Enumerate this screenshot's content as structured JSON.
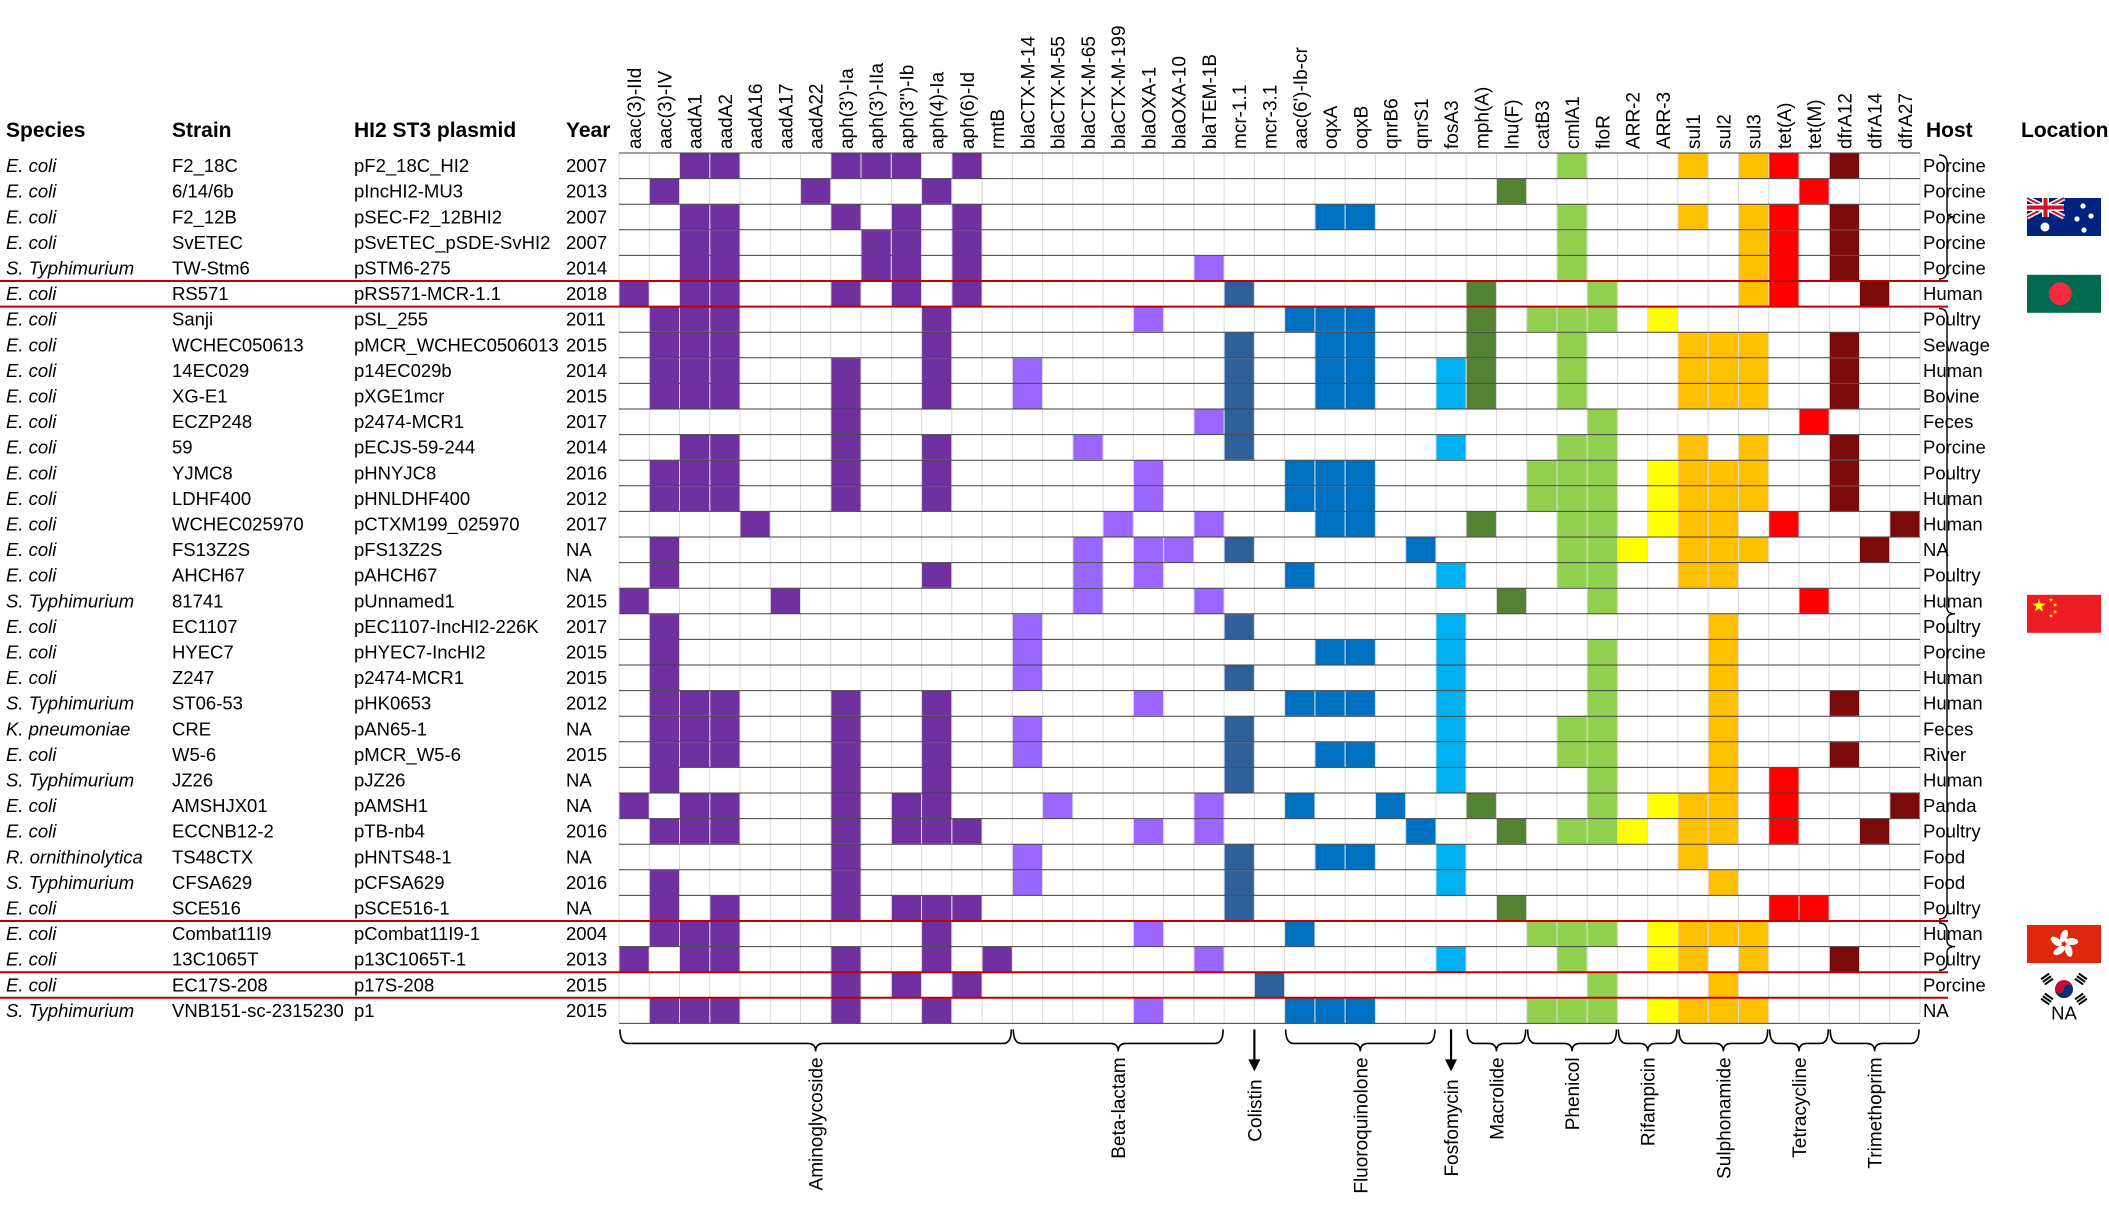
{
  "headers": {
    "species": "Species",
    "strain": "Strain",
    "plasmid": "HI2 ST3 plasmid",
    "year": "Year",
    "host": "Host",
    "location": "Location"
  },
  "colors": {
    "aminoglycoside": "#7030A0",
    "beta_lactam": "#9966FF",
    "colistin": "#2E5F9A",
    "fluoroquinolone": "#0070C0",
    "fosfomycin": "#00B0F0",
    "macrolide": "#548235",
    "phenicol": "#92D050",
    "rifampicin": "#FFFF00",
    "sulphonamide": "#FFC000",
    "tetracycline": "#FF0000",
    "trimethoprim": "#7B0A0A",
    "group_divider": "#C00000",
    "grid": "#D9D9D9"
  },
  "location_labels": {
    "na": "NA"
  },
  "locations": [
    {
      "name": "australia-flag-icon",
      "rows": [
        0,
        4
      ]
    },
    {
      "name": "bangladesh-flag-icon",
      "rows": [
        5,
        5
      ]
    },
    {
      "name": "china-flag-icon",
      "rows": [
        6,
        29
      ]
    },
    {
      "name": "hong-kong-flag-icon",
      "rows": [
        30,
        31
      ]
    },
    {
      "name": "south-korea-flag-icon",
      "rows": [
        32,
        32
      ]
    },
    {
      "name": "na-location",
      "rows": [
        33,
        33
      ]
    }
  ],
  "chart_data": {
    "type": "heatmap",
    "title": "",
    "genes": [
      "aac(3)-IId",
      "aac(3)-IV",
      "aadA1",
      "aadA2",
      "aadA16",
      "aadA17",
      "aadA22",
      "aph(3')-Ia",
      "aph(3')-IIa",
      "aph(3'')-Ib",
      "aph(4)-Ia",
      "aph(6)-Id",
      "rmtB",
      "blaCTX-M-14",
      "blaCTX-M-55",
      "blaCTX-M-65",
      "blaCTX-M-199",
      "blaOXA-1",
      "blaOXA-10",
      "blaTEM-1B",
      "mcr-1.1",
      "mcr-3.1",
      "aac(6')-Ib-cr",
      "oqxA",
      "oqxB",
      "qnrB6",
      "qnrS1",
      "fosA3",
      "mph(A)",
      "lnu(F)",
      "catB3",
      "cmlA1",
      "floR",
      "ARR-2",
      "ARR-3",
      "sul1",
      "sul2",
      "sul3",
      "tet(A)",
      "tet(M)",
      "dfrA12",
      "dfrA14",
      "dfrA27"
    ],
    "classes": [
      {
        "name": "Aminoglycoside",
        "key": "aminoglycoside",
        "start": 0,
        "end": 12
      },
      {
        "name": "Beta-lactam",
        "key": "beta_lactam",
        "start": 13,
        "end": 19
      },
      {
        "name": "Colistin",
        "key": "colistin",
        "start": 20,
        "end": 21
      },
      {
        "name": "Fluoroquinolone",
        "key": "fluoroquinolone",
        "start": 22,
        "end": 26
      },
      {
        "name": "Fosfomycin",
        "key": "fosfomycin",
        "start": 27,
        "end": 27
      },
      {
        "name": "Macrolide",
        "key": "macrolide",
        "start": 28,
        "end": 29
      },
      {
        "name": "Phenicol",
        "key": "phenicol",
        "start": 30,
        "end": 32
      },
      {
        "name": "Rifampicin",
        "key": "rifampicin",
        "start": 33,
        "end": 34
      },
      {
        "name": "Sulphonamide",
        "key": "sulphonamide",
        "start": 35,
        "end": 37
      },
      {
        "name": "Tetracycline",
        "key": "tetracycline",
        "start": 38,
        "end": 39
      },
      {
        "name": "Trimethoprim",
        "key": "trimethoprim",
        "start": 40,
        "end": 42
      }
    ],
    "group_dividers_after_rows": [
      4,
      5,
      29,
      31,
      32
    ],
    "rows": [
      {
        "species": "E. coli",
        "strain": "F2_18C",
        "plasmid": "pF2_18C_HI2",
        "year": "2007",
        "host": "Porcine",
        "genes": [
          2,
          3,
          7,
          8,
          9,
          11,
          31,
          35,
          37,
          38,
          40
        ]
      },
      {
        "species": "E. coli",
        "strain": "6/14/6b",
        "plasmid": "pIncHI2-MU3",
        "year": "2013",
        "host": "Porcine",
        "genes": [
          1,
          6,
          10,
          29,
          39
        ]
      },
      {
        "species": "E. coli",
        "strain": "F2_12B",
        "plasmid": "pSEC-F2_12BHI2",
        "year": "2007",
        "host": "Porcine",
        "genes": [
          2,
          3,
          7,
          9,
          11,
          23,
          24,
          31,
          35,
          37,
          38,
          40
        ]
      },
      {
        "species": "E. coli",
        "strain": "SvETEC",
        "plasmid": "pSvETEC_pSDE-SvHI2",
        "year": "2007",
        "host": "Porcine",
        "genes": [
          2,
          3,
          8,
          9,
          11,
          31,
          37,
          38,
          40
        ]
      },
      {
        "species": "S. Typhimurium",
        "strain": "TW-Stm6",
        "plasmid": "pSTM6-275",
        "year": "2014",
        "host": "Porcine",
        "genes": [
          2,
          3,
          8,
          9,
          11,
          19,
          31,
          37,
          38,
          40
        ]
      },
      {
        "species": "E. coli",
        "strain": "RS571",
        "plasmid": "pRS571-MCR-1.1",
        "year": "2018",
        "host": "Human",
        "genes": [
          0,
          2,
          3,
          7,
          9,
          11,
          20,
          28,
          32,
          37,
          38,
          41
        ]
      },
      {
        "species": "E. coli",
        "strain": "Sanji",
        "plasmid": "pSL_255",
        "year": "2011",
        "host": "Poultry",
        "genes": [
          1,
          2,
          3,
          10,
          17,
          22,
          23,
          24,
          28,
          30,
          31,
          32,
          34
        ]
      },
      {
        "species": "E. coli",
        "strain": "WCHEC050613",
        "plasmid": "pMCR_WCHEC0506013",
        "year": "2015",
        "host": "Sewage",
        "genes": [
          1,
          2,
          3,
          10,
          20,
          23,
          24,
          28,
          31,
          35,
          36,
          37,
          40
        ]
      },
      {
        "species": "E. coli",
        "strain": "14EC029",
        "plasmid": "p14EC029b",
        "year": "2014",
        "host": "Human",
        "genes": [
          1,
          2,
          3,
          7,
          10,
          13,
          20,
          23,
          24,
          27,
          28,
          31,
          35,
          36,
          37,
          40
        ]
      },
      {
        "species": "E. coli",
        "strain": "XG-E1",
        "plasmid": "pXGE1mcr",
        "year": "2015",
        "host": "Bovine",
        "genes": [
          1,
          2,
          3,
          7,
          10,
          13,
          20,
          23,
          24,
          27,
          28,
          31,
          35,
          36,
          37,
          40
        ]
      },
      {
        "species": "E. coli",
        "strain": "ECZP248",
        "plasmid": "p2474-MCR1",
        "year": "2017",
        "host": "Feces",
        "genes": [
          7,
          19,
          20,
          32,
          39
        ]
      },
      {
        "species": "E. coli",
        "strain": "59",
        "plasmid": "pECJS-59-244",
        "year": "2014",
        "host": "Porcine",
        "genes": [
          2,
          3,
          7,
          10,
          15,
          20,
          27,
          31,
          32,
          35,
          37,
          40
        ]
      },
      {
        "species": "E. coli",
        "strain": "YJMC8",
        "plasmid": "pHNYJC8",
        "year": "2016",
        "host": "Poultry",
        "genes": [
          1,
          2,
          3,
          7,
          10,
          17,
          22,
          23,
          24,
          30,
          31,
          32,
          34,
          35,
          36,
          37,
          40
        ]
      },
      {
        "species": "E. coli",
        "strain": "LDHF400",
        "plasmid": "pHNLDHF400",
        "year": "2012",
        "host": "Human",
        "genes": [
          1,
          2,
          3,
          7,
          10,
          17,
          22,
          23,
          24,
          30,
          31,
          32,
          34,
          35,
          36,
          37,
          40
        ]
      },
      {
        "species": "E. coli",
        "strain": "WCHEC025970",
        "plasmid": "pCTXM199_025970",
        "year": "2017",
        "host": "Human",
        "genes": [
          4,
          16,
          19,
          23,
          24,
          28,
          31,
          32,
          34,
          35,
          36,
          38,
          42
        ]
      },
      {
        "species": "E. coli",
        "strain": "FS13Z2S",
        "plasmid": "pFS13Z2S",
        "year": "NA",
        "host": "NA",
        "genes": [
          1,
          15,
          17,
          18,
          20,
          26,
          31,
          32,
          33,
          35,
          36,
          37,
          41
        ]
      },
      {
        "species": "E. coli",
        "strain": "AHCH67",
        "plasmid": "pAHCH67",
        "year": "NA",
        "host": "Poultry",
        "genes": [
          1,
          10,
          15,
          17,
          22,
          27,
          31,
          32,
          35,
          36
        ]
      },
      {
        "species": "S. Typhimurium",
        "strain": "81741",
        "plasmid": "pUnnamed1",
        "year": "2015",
        "host": "Human",
        "genes": [
          0,
          5,
          15,
          19,
          29,
          32,
          39
        ]
      },
      {
        "species": "E. coli",
        "strain": "EC1107",
        "plasmid": "pEC1107-IncHI2-226K",
        "year": "2017",
        "host": "Poultry",
        "genes": [
          1,
          13,
          20,
          27,
          36
        ]
      },
      {
        "species": "E. coli",
        "strain": "HYEC7",
        "plasmid": "pHYEC7-IncHI2",
        "year": "2015",
        "host": "Porcine",
        "genes": [
          1,
          13,
          23,
          24,
          27,
          32,
          36
        ]
      },
      {
        "species": "E. coli",
        "strain": "Z247",
        "plasmid": "p2474-MCR1",
        "year": "2015",
        "host": "Human",
        "genes": [
          1,
          13,
          20,
          27,
          32,
          36
        ]
      },
      {
        "species": "S. Typhimurium",
        "strain": "ST06-53",
        "plasmid": "pHK0653",
        "year": "2012",
        "host": "Human",
        "genes": [
          1,
          2,
          3,
          7,
          10,
          17,
          22,
          23,
          24,
          27,
          32,
          36,
          40
        ]
      },
      {
        "species": "K. pneumoniae",
        "strain": "CRE",
        "plasmid": "pAN65-1",
        "year": "NA",
        "host": "Feces",
        "genes": [
          1,
          2,
          3,
          7,
          10,
          13,
          20,
          27,
          31,
          32,
          36
        ]
      },
      {
        "species": "E. coli",
        "strain": "W5-6",
        "plasmid": "pMCR_W5-6",
        "year": "2015",
        "host": "River",
        "genes": [
          1,
          2,
          3,
          7,
          10,
          13,
          20,
          23,
          24,
          27,
          31,
          32,
          36,
          40
        ]
      },
      {
        "species": "S. Typhimurium",
        "strain": "JZ26",
        "plasmid": "pJZ26",
        "year": "NA",
        "host": "Human",
        "genes": [
          1,
          7,
          10,
          20,
          27,
          32,
          36,
          38
        ]
      },
      {
        "species": "E. coli",
        "strain": "AMSHJX01",
        "plasmid": "pAMSH1",
        "year": "NA",
        "host": "Panda",
        "genes": [
          0,
          2,
          3,
          7,
          9,
          10,
          14,
          19,
          22,
          25,
          28,
          32,
          34,
          35,
          36,
          38,
          42
        ]
      },
      {
        "species": "E. coli",
        "strain": "ECCNB12-2",
        "plasmid": "pTB-nb4",
        "year": "2016",
        "host": "Poultry",
        "genes": [
          1,
          2,
          3,
          7,
          9,
          10,
          11,
          17,
          19,
          26,
          29,
          31,
          32,
          33,
          35,
          36,
          38,
          41
        ]
      },
      {
        "species": "R. ornithinolytica",
        "strain": "TS48CTX",
        "plasmid": "pHNTS48-1",
        "year": "NA",
        "host": "Food",
        "genes": [
          7,
          13,
          20,
          23,
          24,
          27,
          35
        ]
      },
      {
        "species": "S. Typhimurium",
        "strain": "CFSA629",
        "plasmid": "pCFSA629",
        "year": "2016",
        "host": "Food",
        "genes": [
          1,
          7,
          13,
          20,
          27,
          36
        ]
      },
      {
        "species": "E. coli",
        "strain": "SCE516",
        "plasmid": "pSCE516-1",
        "year": "NA",
        "host": "Poultry",
        "genes": [
          1,
          3,
          7,
          9,
          10,
          11,
          20,
          29,
          38,
          39
        ]
      },
      {
        "species": "E. coli",
        "strain": "Combat11I9",
        "plasmid": "pCombat11I9-1",
        "year": "2004",
        "host": "Human",
        "genes": [
          1,
          2,
          3,
          10,
          17,
          22,
          30,
          31,
          32,
          34,
          35,
          36,
          37
        ]
      },
      {
        "species": "E. coli",
        "strain": "13C1065T",
        "plasmid": "p13C1065T-1",
        "year": "2013",
        "host": "Poultry",
        "genes": [
          0,
          2,
          3,
          7,
          10,
          12,
          19,
          27,
          31,
          34,
          35,
          37,
          40
        ]
      },
      {
        "species": "E. coli",
        "strain": "EC17S-208",
        "plasmid": "p17S-208",
        "year": "2015",
        "host": "Porcine",
        "genes": [
          7,
          9,
          11,
          21,
          32,
          36
        ]
      },
      {
        "species": "S. Typhimurium",
        "strain": "VNB151-sc-2315230",
        "plasmid": "p1",
        "year": "2015",
        "host": "NA",
        "genes": [
          1,
          2,
          3,
          7,
          10,
          17,
          22,
          23,
          24,
          30,
          31,
          32,
          34,
          35,
          36,
          37
        ]
      }
    ]
  }
}
